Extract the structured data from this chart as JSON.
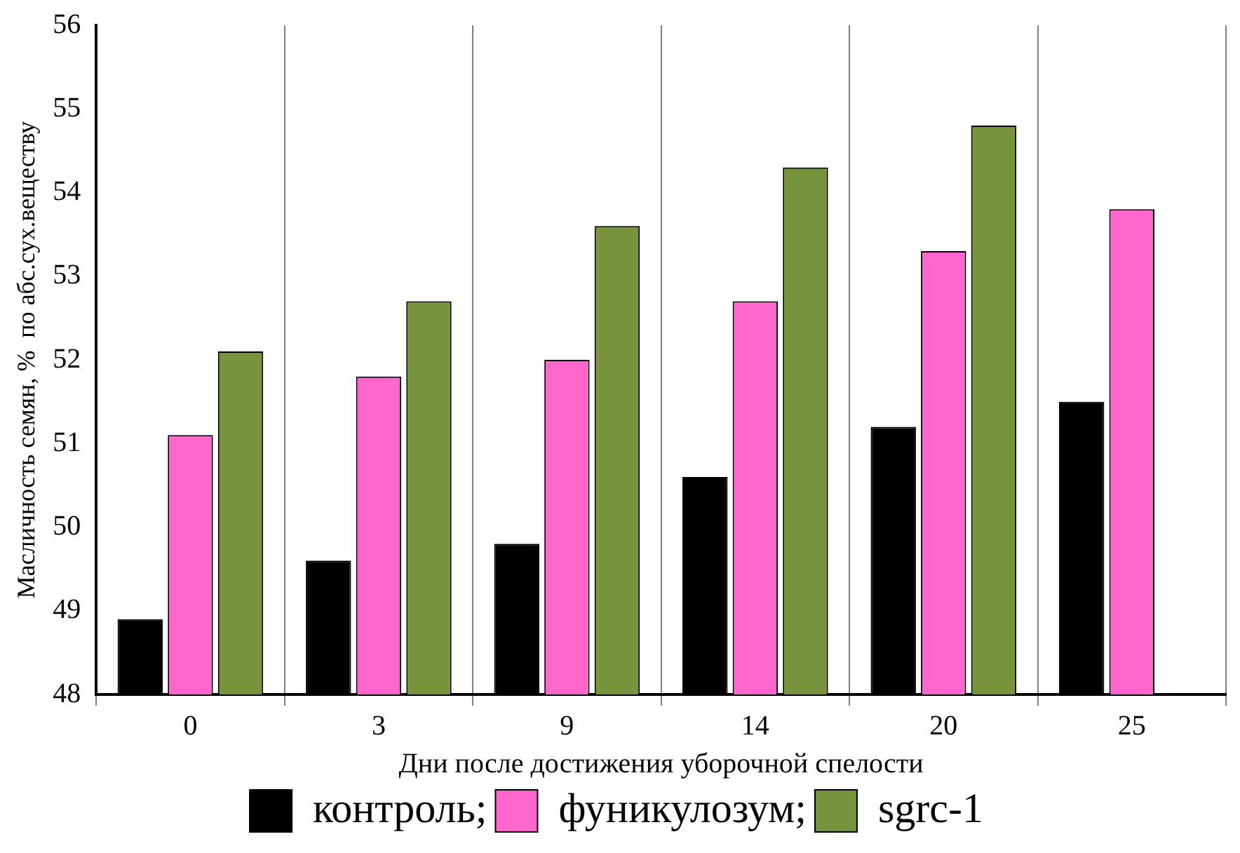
{
  "chart_data": {
    "type": "bar",
    "xlabel": "Дни после достижения уборочной спелости",
    "ylabel": "Масличность семян, %  по абс.сух.веществу",
    "categories": [
      "0",
      "3",
      "9",
      "14",
      "20",
      "25"
    ],
    "series": [
      {
        "name": "контроль;",
        "color": "#000000",
        "values": [
          48.9,
          49.6,
          49.8,
          50.6,
          51.2,
          51.5
        ]
      },
      {
        "name": "фуникулозум;",
        "color": "#ff66cc",
        "values": [
          51.1,
          51.8,
          52.0,
          52.7,
          53.3,
          53.8
        ]
      },
      {
        "name": "sgrc-1",
        "color": "#77933c",
        "values": [
          52.1,
          52.7,
          53.6,
          54.3,
          54.8,
          null
        ]
      }
    ],
    "ylim": [
      48,
      56
    ],
    "yticks": [
      48,
      49,
      50,
      51,
      52,
      53,
      54,
      55,
      56
    ],
    "grid": "x",
    "legend": "bottom"
  }
}
